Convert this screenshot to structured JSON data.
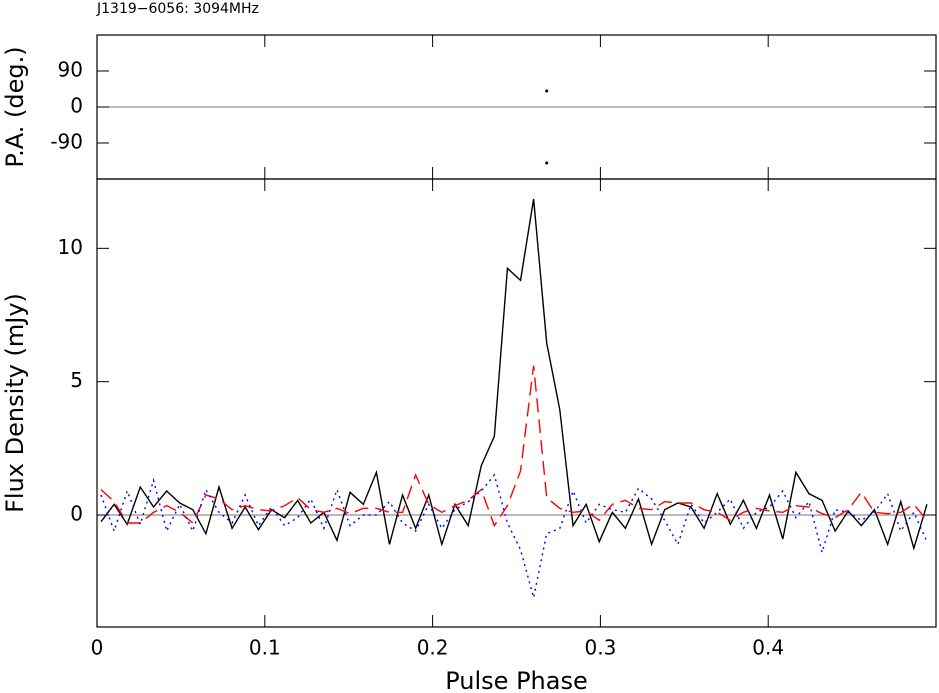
{
  "chart_data": [
    {
      "type": "scatter",
      "title": "J1319−6056: 3094MHz",
      "y_label": "P.A. (deg.)",
      "x": [
        0.268,
        0.268
      ],
      "values": [
        40,
        -140
      ],
      "color": "#000000",
      "xlim": [
        0,
        0.5
      ],
      "xticks": [
        0,
        0.1,
        0.2,
        0.3,
        0.4
      ],
      "ylim": [
        -180,
        180
      ],
      "yticks": [
        -90,
        0,
        90
      ]
    },
    {
      "type": "line",
      "y_label": "Flux Density (mJy)",
      "x_label": "Pulse Phase",
      "x": [
        0.0024,
        0.0102,
        0.018,
        0.0258,
        0.0337,
        0.0415,
        0.0493,
        0.0571,
        0.0649,
        0.0727,
        0.0805,
        0.0883,
        0.0962,
        0.104,
        0.1118,
        0.1196,
        0.1274,
        0.1352,
        0.143,
        0.1508,
        0.1587,
        0.1665,
        0.1743,
        0.1821,
        0.1899,
        0.1977,
        0.2055,
        0.2133,
        0.2212,
        0.229,
        0.2368,
        0.2446,
        0.2524,
        0.2602,
        0.268,
        0.2758,
        0.2837,
        0.2915,
        0.2993,
        0.3071,
        0.3149,
        0.3227,
        0.3305,
        0.3383,
        0.3462,
        0.354,
        0.3618,
        0.3696,
        0.3774,
        0.3852,
        0.393,
        0.4008,
        0.4087,
        0.4165,
        0.4243,
        0.4321,
        0.4399,
        0.4477,
        0.4555,
        0.4633,
        0.4712,
        0.479,
        0.4868,
        0.4946
      ],
      "series": [
        {
          "color": "#000000",
          "linestyle": "solid",
          "values": [
            -0.25,
            0.4,
            -0.35,
            1.05,
            0.3,
            0.9,
            0.45,
            0.2,
            -0.7,
            1.05,
            -0.5,
            0.3,
            -0.55,
            0.2,
            -0.1,
            0.55,
            -0.3,
            0.1,
            -0.95,
            0.85,
            0.4,
            1.6,
            -1.1,
            0.75,
            -0.5,
            0.75,
            -1.1,
            0.4,
            -0.4,
            1.85,
            2.95,
            9.25,
            8.8,
            11.85,
            6.45,
            3.95,
            -0.4,
            0.4,
            -1.0,
            0.1,
            -0.5,
            0.6,
            -1.1,
            0.2,
            0.45,
            0.3,
            -0.5,
            0.8,
            -0.35,
            0.55,
            -0.5,
            0.75,
            -0.9,
            1.6,
            0.8,
            0.55,
            -0.6,
            0.15,
            -0.4,
            0.2,
            -1.1,
            0.5,
            -1.25,
            0.4
          ]
        },
        {
          "color": "#ff0000",
          "linestyle": "dashed",
          "values": [
            0.95,
            0.5,
            -0.3,
            -0.3,
            0.1,
            0.35,
            0.1,
            -0.3,
            0.75,
            0.6,
            0.2,
            0.35,
            0.2,
            0.15,
            0.35,
            0.65,
            0.2,
            0.1,
            0.25,
            0.05,
            0.25,
            0.25,
            0.1,
            0.1,
            1.5,
            0.4,
            0.1,
            0.35,
            0.55,
            0.95,
            -0.4,
            0.35,
            1.65,
            5.6,
            0.65,
            0.25,
            0.1,
            0.15,
            -0.2,
            0.4,
            0.55,
            0.25,
            0.2,
            0.5,
            0.45,
            0.45,
            0.2,
            0.1,
            -0.2,
            0.1,
            0.25,
            0.15,
            0.1,
            0.35,
            0.3,
            0.05,
            -0.1,
            0.2,
            0.85,
            0.1,
            0.05,
            0.1,
            0.4,
            -0.2
          ]
        },
        {
          "color": "#0000ff",
          "linestyle": "dotted",
          "values": [
            0.75,
            -0.6,
            0.9,
            -0.35,
            1.3,
            -0.6,
            0.4,
            -0.6,
            0.95,
            0.1,
            -0.3,
            0.75,
            -0.4,
            0.3,
            -0.4,
            -0.1,
            0.6,
            -0.5,
            0.95,
            -0.4,
            0.0,
            0.0,
            0.5,
            -0.3,
            -0.6,
            0.4,
            -0.5,
            0.2,
            0.5,
            0.9,
            1.5,
            -0.3,
            -1.3,
            -3.1,
            -0.7,
            -0.5,
            0.9,
            -0.3,
            0.4,
            0.2,
            0.1,
            1.0,
            0.6,
            -0.2,
            -1.1,
            0.4,
            -0.3,
            0.1,
            0.6,
            -0.5,
            0.1,
            0.3,
            0.9,
            -0.1,
            0.5,
            -1.4,
            0.2,
            0.1,
            -0.2,
            0.1,
            0.8,
            -0.6,
            0.1,
            -1.0
          ]
        }
      ],
      "xlim": [
        0,
        0.5
      ],
      "xticks": [
        0,
        0.1,
        0.2,
        0.3,
        0.4
      ],
      "ylim": [
        -4.2,
        12.6
      ],
      "yticks": [
        0,
        5,
        10
      ]
    }
  ]
}
